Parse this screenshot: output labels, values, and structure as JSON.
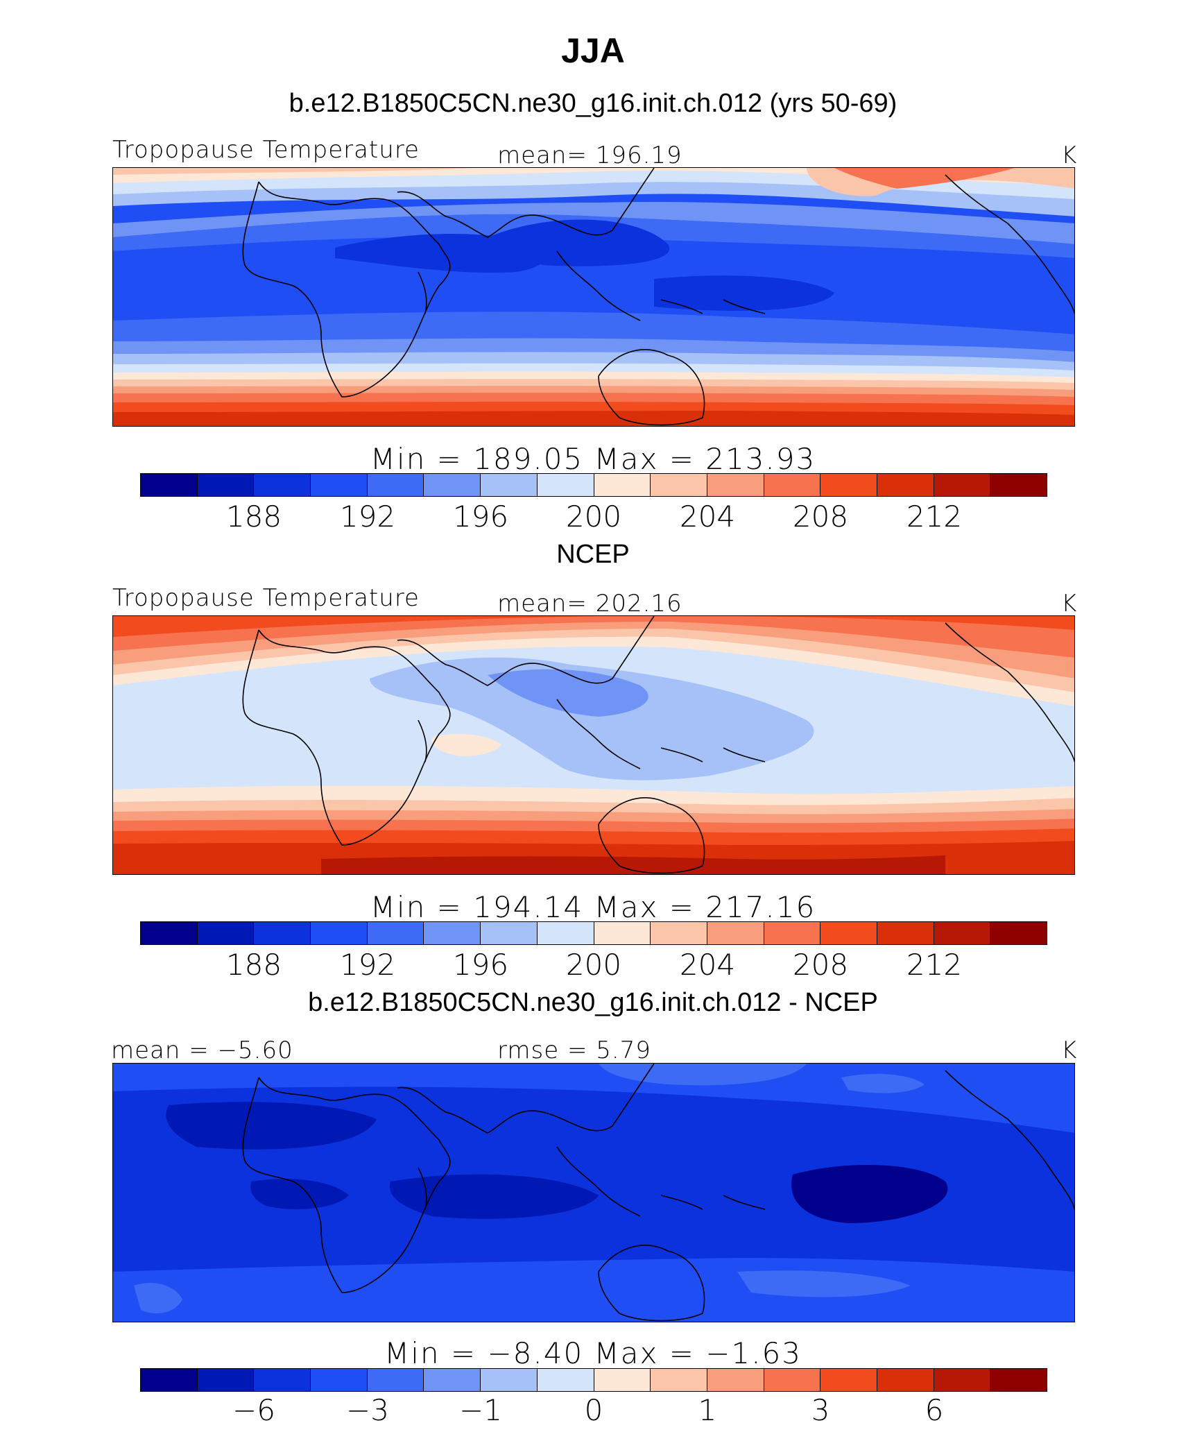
{
  "header": {
    "season": "JJA",
    "case_title": "b.e12.B1850C5CN.ne30_g16.init.ch.012 (yrs 50-69)"
  },
  "colors": {
    "palette": [
      "#00008c",
      "#0018b4",
      "#0b32dc",
      "#1f4ff4",
      "#3d6bf5",
      "#6f94f6",
      "#a6c0f8",
      "#d3e4fb",
      "#fde8d8",
      "#fbc5aa",
      "#f99e7c",
      "#f7724e",
      "#f24b1d",
      "#d9300a",
      "#b61805",
      "#8e0000"
    ]
  },
  "panels": [
    {
      "name": "model",
      "variable": "Tropopause Temperature",
      "left_stat": "",
      "center_stat": "mean= 196.19",
      "units": "K",
      "min_max": "Min = 189.05 Max = 213.93",
      "ticks": [
        "188",
        "192",
        "196",
        "200",
        "204",
        "208",
        "212"
      ]
    },
    {
      "name": "obs",
      "title": "NCEP",
      "variable": "Tropopause Temperature",
      "left_stat": "",
      "center_stat": "mean= 202.16",
      "units": "K",
      "min_max": "Min = 194.14 Max = 217.16",
      "ticks": [
        "188",
        "192",
        "196",
        "200",
        "204",
        "208",
        "212"
      ]
    },
    {
      "name": "diff",
      "title": "b.e12.B1850C5CN.ne30_g16.init.ch.012 - NCEP",
      "variable": "",
      "left_stat": "mean =  −5.60",
      "center_stat": "rmse =     5.79",
      "units": "K",
      "min_max": "Min =  −8.40 Max =  −1.63",
      "ticks": [
        "−6",
        "−3",
        "−1",
        "0",
        "1",
        "3",
        "6"
      ]
    }
  ]
}
